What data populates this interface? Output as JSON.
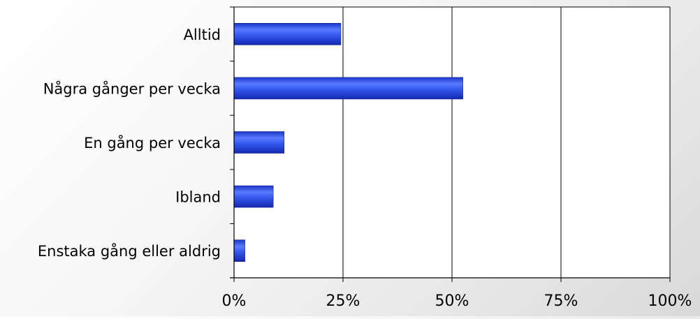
{
  "chart_data": {
    "type": "bar",
    "orientation": "horizontal",
    "categories": [
      "Alltid",
      "Några gånger per vecka",
      "En gång per vecka",
      "Ibland",
      "Enstaka gång eller aldrig"
    ],
    "values": [
      24.5,
      52.5,
      11.5,
      9.0,
      2.5
    ],
    "value_unit": "%",
    "xlim": [
      0,
      100
    ],
    "x_ticks": [
      0,
      25,
      50,
      75,
      100
    ],
    "x_tick_labels": [
      "0%",
      "25%",
      "50%",
      "75%",
      "100%"
    ],
    "title": "",
    "xlabel": "",
    "ylabel": "",
    "grid": "vertical",
    "legend": "none",
    "bar_color": "#2f52e6"
  }
}
